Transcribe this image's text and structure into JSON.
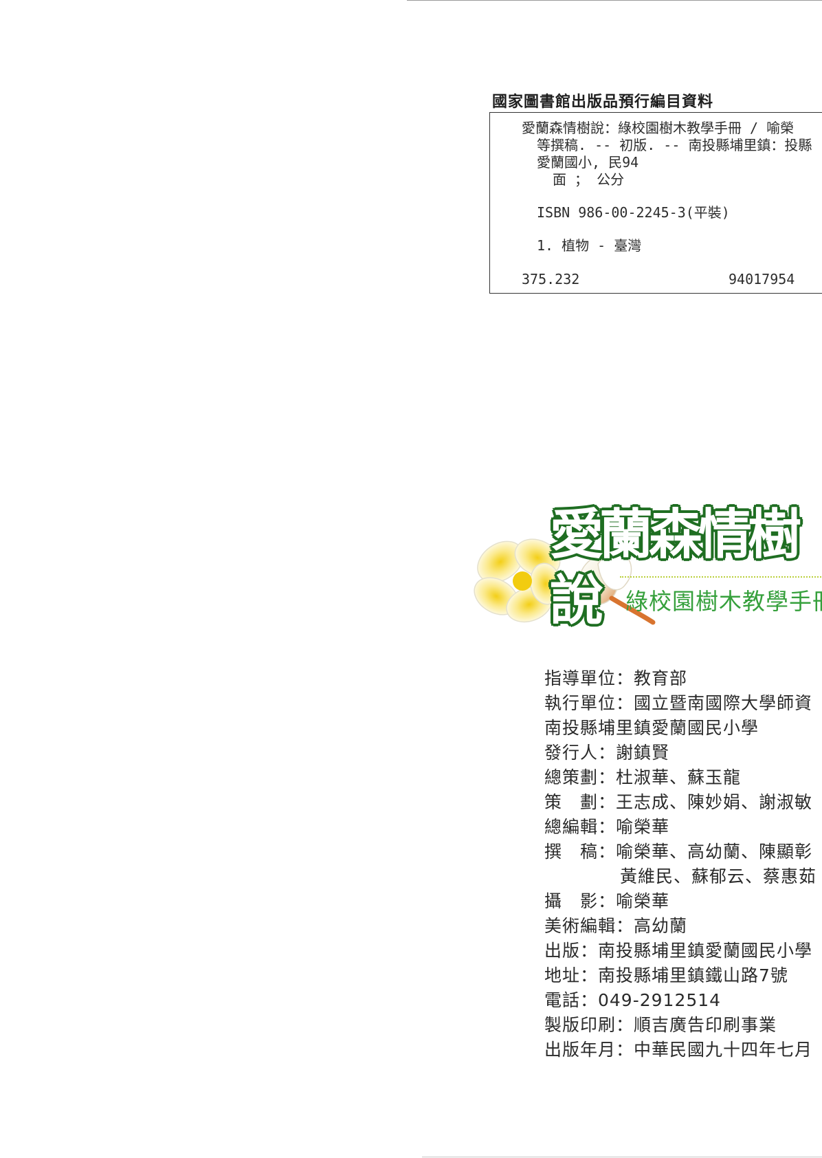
{
  "cip": {
    "heading": "國家圖書館出版品預行編目資料",
    "lines": [
      "愛蘭森情樹說：綠校園樹木教學手冊 / 喻榮",
      "等撰稿. -- 初版. -- 南投縣埔里鎮：投縣",
      "愛蘭國小, 民94",
      "面 ； 公分",
      "ISBN 986-00-2245-3(平裝)",
      "1. 植物 - 臺灣",
      "375.232",
      "94017954"
    ]
  },
  "title": {
    "logo": "愛蘭森情樹說",
    "subtitle": "綠校園樹木教學手冊"
  },
  "credits": [
    "指導單位：教育部",
    "執行單位：國立暨南國際大學師資",
    "南投縣埔里鎮愛蘭國民小學",
    "發行人：謝鎮賢",
    "總策劃：杜淑華、蘇玉龍",
    "策　劃：王志成、陳妙娟、謝淑敏",
    "總編輯：喻榮華",
    "撰　稿：喻榮華、高幼蘭、陳顯彰",
    "黃維民、蘇郁云、蔡惠茹",
    "攝　影：喻榮華",
    "美術編輯：高幼蘭",
    "出版：南投縣埔里鎮愛蘭國民小學",
    "地址：南投縣埔里鎮鐵山路7號",
    "電話：049-2912514",
    "製版印刷：順吉廣告印刷事業",
    "出版年月：中華民國九十四年七月"
  ],
  "colors": {
    "logo_green": "#2e8a2e",
    "subtitle_green": "#36a03c",
    "flower_yellow": "#f4d21f"
  }
}
